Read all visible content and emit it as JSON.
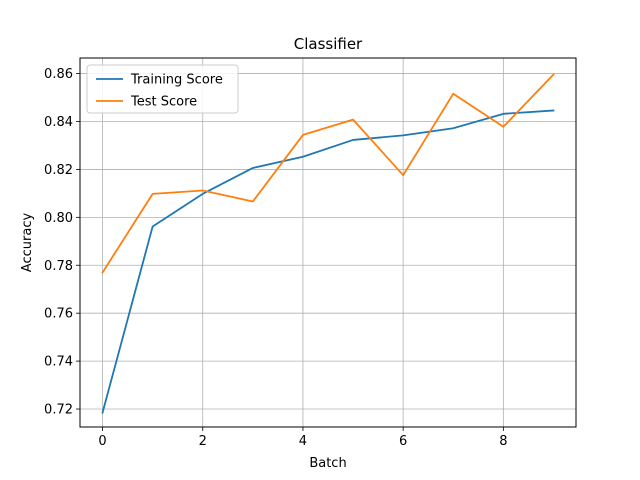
{
  "chart_data": {
    "type": "line",
    "title": "Classifier",
    "xlabel": "Batch",
    "ylabel": "Accuracy",
    "x": [
      0,
      1,
      2,
      3,
      4,
      5,
      6,
      7,
      8,
      9
    ],
    "xlim": [
      -0.45,
      9.45
    ],
    "ylim": [
      0.7125,
      0.8665
    ],
    "x_ticks": [
      0,
      2,
      4,
      6,
      8
    ],
    "x_tick_labels": [
      "0",
      "2",
      "4",
      "6",
      "8"
    ],
    "y_ticks": [
      0.72,
      0.74,
      0.76,
      0.78,
      0.8,
      0.82,
      0.84,
      0.86
    ],
    "y_tick_labels": [
      "0.72",
      "0.74",
      "0.76",
      "0.78",
      "0.80",
      "0.82",
      "0.84",
      "0.86"
    ],
    "grid": true,
    "legend_position": "top-left",
    "series": [
      {
        "name": "Training Score",
        "color": "#1f77b4",
        "values": [
          0.7185,
          0.7962,
          0.8098,
          0.8206,
          0.8253,
          0.8323,
          0.8342,
          0.8372,
          0.8432,
          0.8446
        ]
      },
      {
        "name": "Test Score",
        "color": "#ff7f0e",
        "values": [
          0.777,
          0.8098,
          0.8112,
          0.8066,
          0.8344,
          0.8408,
          0.8176,
          0.8516,
          0.8378,
          0.8596
        ]
      }
    ]
  }
}
